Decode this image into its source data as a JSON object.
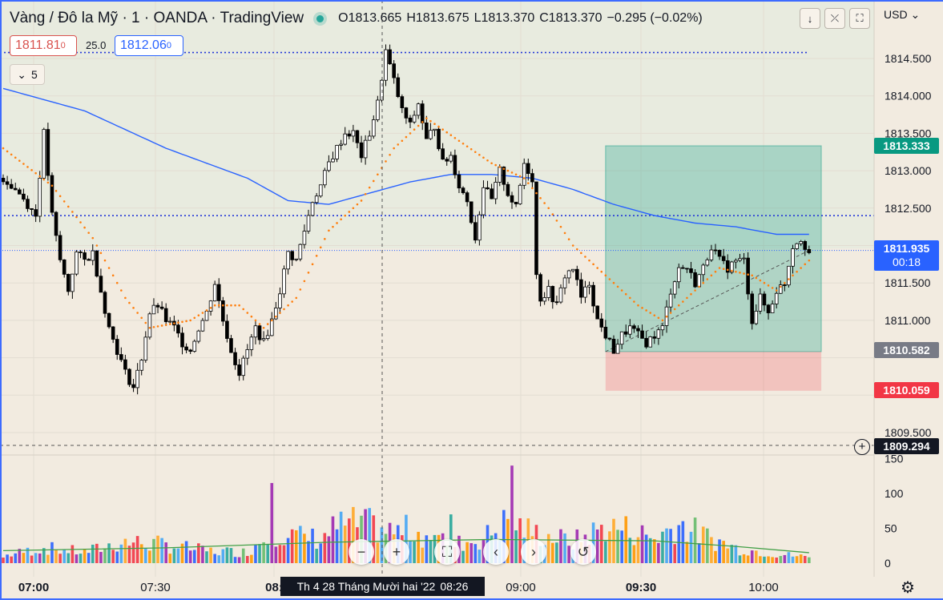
{
  "header": {
    "title": "Vàng / Đô la Mỹ · 1 · OANDA · TradingView",
    "ohlc": {
      "o": "O1813.665",
      "h": "H1813.675",
      "l": "L1813.370",
      "c": "C1813.370",
      "change": "−0.295 (−0.02%)"
    },
    "currency": "USD"
  },
  "trade": {
    "sell": "1811.81",
    "sell_sup": "0",
    "spread": "25.0",
    "buy": "1812.06",
    "buy_sup": "0"
  },
  "indicators_toggle": "5",
  "axis": {
    "price_ticks": [
      "1814.500",
      "1814.000",
      "1813.500",
      "1813.000",
      "1812.500",
      "1811.500",
      "1811.000",
      "1809.500"
    ],
    "time_ticks": [
      "07:00",
      "07:30",
      "08:",
      "09:00",
      "09:30",
      "10:00"
    ],
    "volume_ticks": [
      "150",
      "100",
      "50",
      "0"
    ]
  },
  "badges": {
    "target": "1813.333",
    "current": "1811.935",
    "countdown": "00:18",
    "entry": "1810.582",
    "stop": "1810.059",
    "crosshair": "1809.294"
  },
  "crosshair_time": {
    "date": "Th 4 28 Tháng Mười hai '22",
    "time": "08:26"
  },
  "colors": {
    "up": "#ffffff",
    "down": "#000000",
    "ma": "#2962ff",
    "sar": "#ff7f0e",
    "target": "#089981",
    "stop": "#f23645",
    "bg": "#f2ebe0"
  },
  "chart_data": {
    "type": "candlestick",
    "symbol": "Vàng / Đô la Mỹ",
    "interval": "1",
    "ylim": [
      1809.2,
      1814.95
    ],
    "x_labels": [
      "07:00",
      "07:30",
      "08:",
      "09:00",
      "09:30",
      "10:00"
    ],
    "price_anchors": [
      [
        0,
        1812.9
      ],
      [
        4,
        1812.7
      ],
      [
        8,
        1812.4
      ],
      [
        10,
        1813.5
      ],
      [
        12,
        1812.4
      ],
      [
        14,
        1811.8
      ],
      [
        16,
        1811.4
      ],
      [
        18,
        1811.9
      ],
      [
        20,
        1811.8
      ],
      [
        22,
        1811.9
      ],
      [
        24,
        1811.4
      ],
      [
        26,
        1810.9
      ],
      [
        28,
        1810.6
      ],
      [
        30,
        1810.3
      ],
      [
        32,
        1810.1
      ],
      [
        34,
        1810.5
      ],
      [
        36,
        1811.1
      ],
      [
        38,
        1811.2
      ],
      [
        40,
        1811.0
      ],
      [
        42,
        1810.9
      ],
      [
        44,
        1810.7
      ],
      [
        46,
        1810.6
      ],
      [
        48,
        1810.9
      ],
      [
        50,
        1811.1
      ],
      [
        52,
        1811.5
      ],
      [
        54,
        1811.0
      ],
      [
        56,
        1810.6
      ],
      [
        58,
        1810.3
      ],
      [
        60,
        1810.6
      ],
      [
        62,
        1810.9
      ],
      [
        64,
        1810.7
      ],
      [
        66,
        1811.0
      ],
      [
        68,
        1811.4
      ],
      [
        70,
        1811.9
      ],
      [
        72,
        1811.8
      ],
      [
        74,
        1812.2
      ],
      [
        76,
        1812.6
      ],
      [
        78,
        1812.8
      ],
      [
        80,
        1813.1
      ],
      [
        82,
        1813.3
      ],
      [
        84,
        1813.5
      ],
      [
        86,
        1813.5
      ],
      [
        88,
        1813.2
      ],
      [
        90,
        1813.5
      ],
      [
        92,
        1813.9
      ],
      [
        94,
        1814.6
      ],
      [
        96,
        1814.2
      ],
      [
        98,
        1813.8
      ],
      [
        100,
        1813.6
      ],
      [
        102,
        1813.9
      ],
      [
        104,
        1813.4
      ],
      [
        106,
        1813.6
      ],
      [
        108,
        1813.1
      ],
      [
        110,
        1813.2
      ],
      [
        112,
        1812.8
      ],
      [
        114,
        1812.6
      ],
      [
        116,
        1812.1
      ],
      [
        118,
        1812.8
      ],
      [
        120,
        1812.6
      ],
      [
        122,
        1813.0
      ],
      [
        124,
        1812.7
      ],
      [
        126,
        1812.5
      ],
      [
        128,
        1813.1
      ],
      [
        130,
        1812.9
      ],
      [
        131,
        1811.6
      ],
      [
        132,
        1811.3
      ],
      [
        134,
        1811.4
      ],
      [
        136,
        1811.2
      ],
      [
        138,
        1811.6
      ],
      [
        140,
        1811.7
      ],
      [
        142,
        1811.3
      ],
      [
        144,
        1811.5
      ],
      [
        146,
        1811.0
      ],
      [
        148,
        1810.8
      ],
      [
        150,
        1810.6
      ],
      [
        152,
        1810.8
      ],
      [
        154,
        1810.9
      ],
      [
        156,
        1810.8
      ],
      [
        158,
        1810.7
      ],
      [
        160,
        1810.8
      ],
      [
        162,
        1810.9
      ],
      [
        164,
        1811.4
      ],
      [
        166,
        1811.7
      ],
      [
        168,
        1811.7
      ],
      [
        170,
        1811.5
      ],
      [
        172,
        1811.7
      ],
      [
        174,
        1812.0
      ],
      [
        176,
        1811.8
      ],
      [
        178,
        1811.7
      ],
      [
        180,
        1811.8
      ],
      [
        182,
        1811.8
      ],
      [
        184,
        1811.0
      ],
      [
        186,
        1811.3
      ],
      [
        188,
        1811.1
      ],
      [
        190,
        1811.4
      ],
      [
        192,
        1811.5
      ],
      [
        194,
        1812.0
      ],
      [
        196,
        1812.1
      ],
      [
        198,
        1811.9
      ]
    ],
    "ma_anchors": [
      [
        0,
        1814.1
      ],
      [
        20,
        1813.8
      ],
      [
        40,
        1813.3
      ],
      [
        60,
        1812.9
      ],
      [
        70,
        1812.6
      ],
      [
        80,
        1812.55
      ],
      [
        90,
        1812.7
      ],
      [
        100,
        1812.85
      ],
      [
        110,
        1812.95
      ],
      [
        120,
        1812.95
      ],
      [
        130,
        1812.9
      ],
      [
        140,
        1812.75
      ],
      [
        150,
        1812.55
      ],
      [
        160,
        1812.4
      ],
      [
        170,
        1812.3
      ],
      [
        180,
        1812.25
      ],
      [
        190,
        1812.15
      ],
      [
        198,
        1812.15
      ]
    ],
    "sar_anchors": [
      [
        0,
        1813.3
      ],
      [
        12,
        1812.8
      ],
      [
        22,
        1812.1
      ],
      [
        30,
        1811.3
      ],
      [
        36,
        1810.9
      ],
      [
        46,
        1811.0
      ],
      [
        52,
        1811.2
      ],
      [
        58,
        1811.2
      ],
      [
        64,
        1810.9
      ],
      [
        72,
        1811.3
      ],
      [
        80,
        1812.2
      ],
      [
        88,
        1812.6
      ],
      [
        96,
        1813.3
      ],
      [
        104,
        1813.7
      ],
      [
        112,
        1813.4
      ],
      [
        120,
        1813.1
      ],
      [
        128,
        1812.9
      ],
      [
        134,
        1812.5
      ],
      [
        140,
        1812.0
      ],
      [
        148,
        1811.6
      ],
      [
        156,
        1811.2
      ],
      [
        162,
        1811.0
      ],
      [
        168,
        1811.3
      ],
      [
        176,
        1811.7
      ],
      [
        184,
        1811.6
      ],
      [
        190,
        1811.4
      ],
      [
        198,
        1811.8
      ]
    ],
    "volume_anchors": [
      [
        0,
        12
      ],
      [
        10,
        25
      ],
      [
        20,
        18
      ],
      [
        30,
        35
      ],
      [
        40,
        30
      ],
      [
        50,
        20
      ],
      [
        60,
        18
      ],
      [
        66,
        55
      ],
      [
        70,
        45
      ],
      [
        78,
        40
      ],
      [
        82,
        60
      ],
      [
        88,
        65
      ],
      [
        96,
        50
      ],
      [
        100,
        55
      ],
      [
        110,
        30
      ],
      [
        118,
        40
      ],
      [
        124,
        70
      ],
      [
        130,
        50
      ],
      [
        140,
        35
      ],
      [
        148,
        60
      ],
      [
        154,
        55
      ],
      [
        160,
        40
      ],
      [
        166,
        65
      ],
      [
        172,
        45
      ],
      [
        180,
        25
      ],
      [
        190,
        15
      ],
      [
        198,
        10
      ]
    ],
    "volume_ma": [
      [
        0,
        18
      ],
      [
        40,
        22
      ],
      [
        80,
        30
      ],
      [
        120,
        34
      ],
      [
        160,
        32
      ],
      [
        180,
        24
      ],
      [
        198,
        15
      ]
    ],
    "volume_spikes": [
      [
        0,
        8
      ],
      [
        66,
        115
      ],
      [
        110,
        70
      ],
      [
        125,
        140
      ]
    ],
    "volume_ylim": [
      0,
      160
    ],
    "position": {
      "entry": 1810.582,
      "target": 1813.333,
      "stop": 1810.059
    },
    "horizontal_levels": [
      1814.58,
      1812.4,
      1811.935,
      1809.294
    ]
  }
}
